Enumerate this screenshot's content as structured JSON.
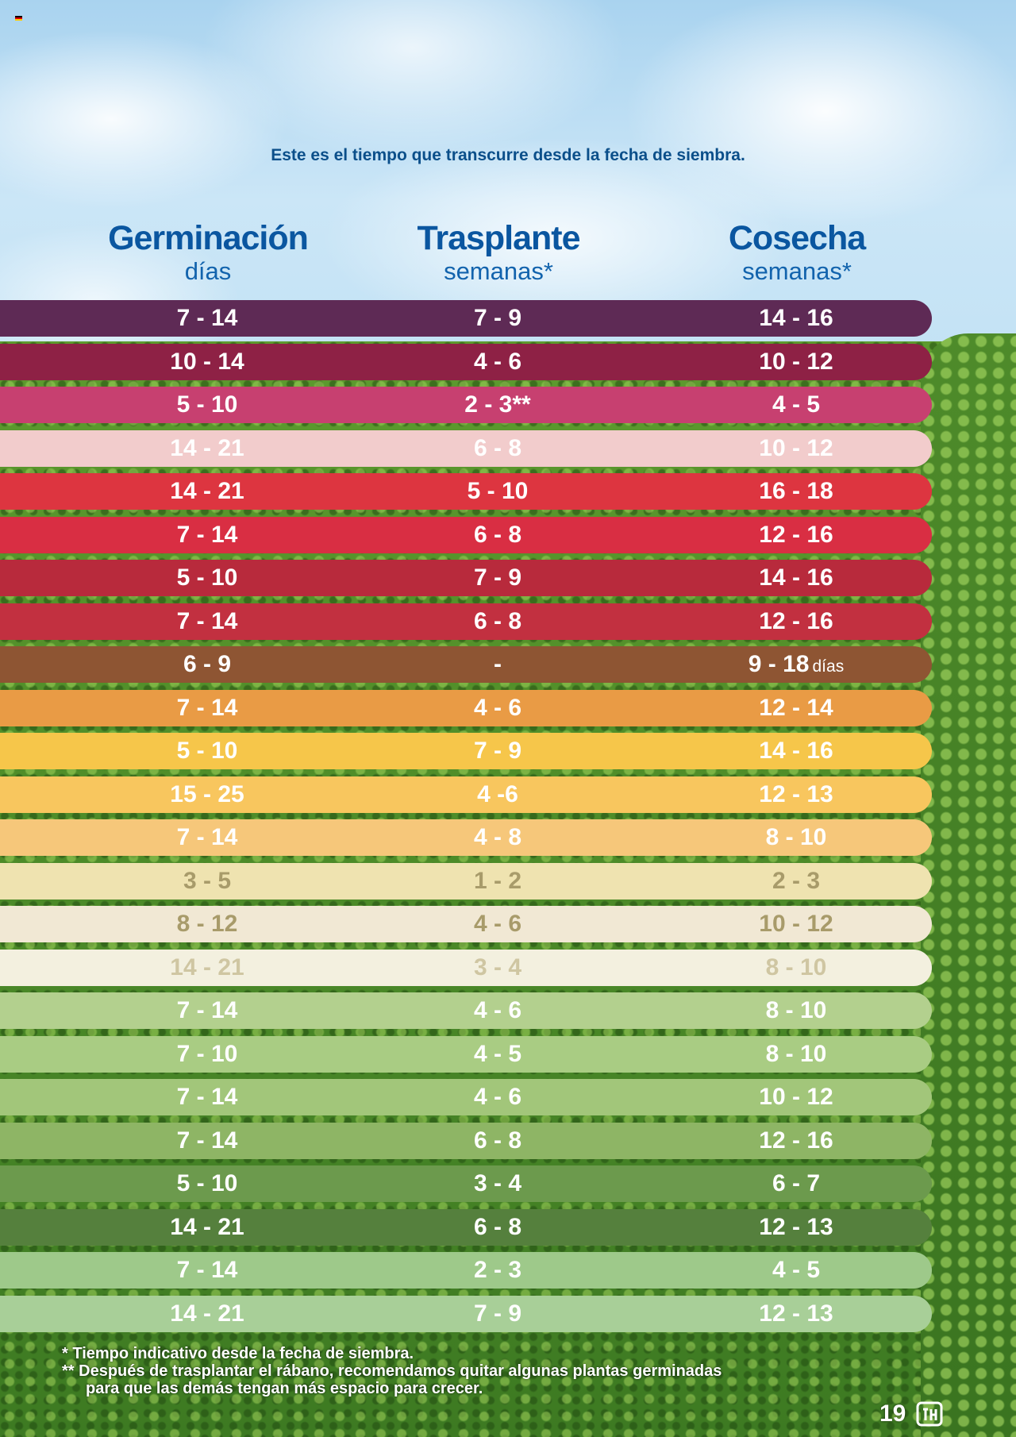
{
  "intro": "Este es el tiempo que transcurre desde la fecha de siembra.",
  "columns": [
    {
      "title": "Germinación",
      "unit": "días"
    },
    {
      "title": "Trasplante",
      "unit": "semanas*"
    },
    {
      "title": "Cosecha",
      "unit": "semanas*"
    }
  ],
  "rows": [
    {
      "germinacion": "7 - 14",
      "trasplante": "7 - 9",
      "cosecha": "14 - 16",
      "bg": "#5e2a55",
      "fg": "#ffffff"
    },
    {
      "germinacion": "10 - 14",
      "trasplante": "4 - 6",
      "cosecha": "10 - 12",
      "bg": "#8e2145",
      "fg": "#ffffff"
    },
    {
      "germinacion": "5 - 10",
      "trasplante": "2 - 3**",
      "cosecha": "4 - 5",
      "bg": "#c74070",
      "fg": "#ffffff"
    },
    {
      "germinacion": "14 - 21",
      "trasplante": "6 - 8",
      "cosecha": "10 - 12",
      "bg": "#f2cccc",
      "fg": "#ffffff"
    },
    {
      "germinacion": "14 - 21",
      "trasplante": "5 - 10",
      "cosecha": "16 - 18",
      "bg": "#dd3540",
      "fg": "#ffffff"
    },
    {
      "germinacion": "7 - 14",
      "trasplante": "6 - 8",
      "cosecha": "12 - 16",
      "bg": "#d92e43",
      "fg": "#ffffff"
    },
    {
      "germinacion": "5 - 10",
      "trasplante": "7 - 9",
      "cosecha": "14 - 16",
      "bg": "#b82a3c",
      "fg": "#ffffff"
    },
    {
      "germinacion": "7 - 14",
      "trasplante": "6 - 8",
      "cosecha": "12 - 16",
      "bg": "#c23040",
      "fg": "#ffffff"
    },
    {
      "germinacion": "6 - 9",
      "trasplante": "-",
      "cosecha": "9 - 18",
      "cosecha_unit": "días",
      "bg": "#8e5533",
      "fg": "#ffffff"
    },
    {
      "germinacion": "7 - 14",
      "trasplante": "4 - 6",
      "cosecha": "12 - 14",
      "bg": "#e99b45",
      "fg": "#ffffff"
    },
    {
      "germinacion": "5 - 10",
      "trasplante": "7 - 9",
      "cosecha": "14 - 16",
      "bg": "#f6c64a",
      "fg": "#ffffff"
    },
    {
      "germinacion": "15 - 25",
      "trasplante": "4 -6",
      "cosecha": "12 - 13",
      "bg": "#f8c65e",
      "fg": "#ffffff"
    },
    {
      "germinacion": "7 - 14",
      "trasplante": "4 - 8",
      "cosecha": "8 - 10",
      "bg": "#f6c77a",
      "fg": "#ffffff"
    },
    {
      "germinacion": "3 - 5",
      "trasplante": "1 - 2",
      "cosecha": "2 - 3",
      "bg": "#efe3b0",
      "fg": "#a89b6a"
    },
    {
      "germinacion": "8 - 12",
      "trasplante": "4 - 6",
      "cosecha": "10 - 12",
      "bg": "#f1e8d4",
      "fg": "#a89b6a"
    },
    {
      "germinacion": "14 - 21",
      "trasplante": "3 - 4",
      "cosecha": "8 - 10",
      "bg": "#f3f0df",
      "fg": "#cfc6a2"
    },
    {
      "germinacion": "7 - 14",
      "trasplante": "4 - 6",
      "cosecha": "8 - 10",
      "bg": "#b3d08e",
      "fg": "#ffffff"
    },
    {
      "germinacion": "7 - 10",
      "trasplante": "4 - 5",
      "cosecha": "8 - 10",
      "bg": "#a9cc83",
      "fg": "#ffffff"
    },
    {
      "germinacion": "7 - 14",
      "trasplante": "4 - 6",
      "cosecha": "10 - 12",
      "bg": "#a2c67a",
      "fg": "#ffffff"
    },
    {
      "germinacion": "7 - 14",
      "trasplante": "6 - 8",
      "cosecha": "12 - 16",
      "bg": "#8eb565",
      "fg": "#ffffff"
    },
    {
      "germinacion": "5 - 10",
      "trasplante": "3 - 4",
      "cosecha": "6 - 7",
      "bg": "#6c9a4d",
      "fg": "#ffffff"
    },
    {
      "germinacion": "14 - 21",
      "trasplante": "6 - 8",
      "cosecha": "12 - 13",
      "bg": "#55803d",
      "fg": "#ffffff"
    },
    {
      "germinacion": "7 - 14",
      "trasplante": "2 - 3",
      "cosecha": "4 - 5",
      "bg": "#9ec98a",
      "fg": "#ffffff"
    },
    {
      "germinacion": "14 - 21",
      "trasplante": "7 - 9",
      "cosecha": "12 - 13",
      "bg": "#a8cf98",
      "fg": "#ffffff"
    }
  ],
  "footnotes": {
    "note1": "* Tiempo indicativo desde la fecha de siembra.",
    "note2": "** Después de trasplantar el rábano, recomendamos quitar algunas plantas germinadas",
    "note3": "para que las demás tengan más espacio para crecer."
  },
  "page_number": "19",
  "icons": {
    "flag": "germany-flag-icon",
    "brand": "brand-logo-icon"
  }
}
